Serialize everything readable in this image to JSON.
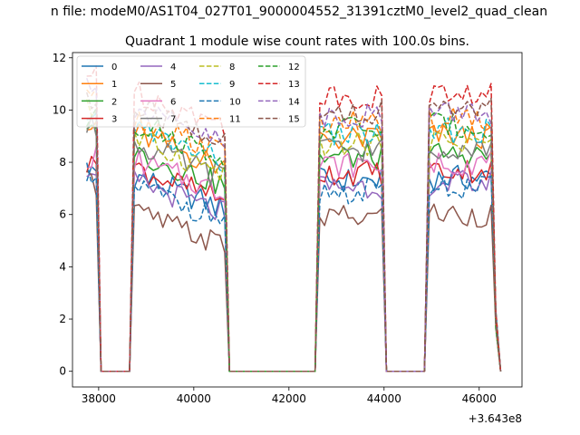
{
  "figure": {
    "suptitle": "n file: modeM0/AS1T04_027T01_9000004552_31391cztM0_level2_quad_clean",
    "title": "Quadrant 1 module wise count rates with 100.0s bins.",
    "offset_label": "+3.643e8"
  },
  "chart_data": {
    "type": "line",
    "title": "Quadrant 1 module wise count rates with 100.0s bins.",
    "xlabel": "",
    "ylabel": "",
    "x_offset": 364300000,
    "xlim": [
      37450,
      46900
    ],
    "ylim": [
      -0.6,
      12.2
    ],
    "xticks": [
      38000,
      40000,
      42000,
      44000,
      46000
    ],
    "xtick_labels": [
      "38000",
      "40000",
      "42000",
      "44000",
      "46000"
    ],
    "yticks": [
      0,
      2,
      4,
      6,
      8,
      10,
      12
    ],
    "ytick_labels": [
      "0",
      "2",
      "4",
      "6",
      "8",
      "10",
      "12"
    ],
    "grid": false,
    "legend_position": "upper-left",
    "legend_columns": 4,
    "series": [
      {
        "name": "0",
        "color": "#1f77b4",
        "dash": "solid",
        "level": 7.0
      },
      {
        "name": "1",
        "color": "#ff7f0e",
        "dash": "solid",
        "level": 8.6
      },
      {
        "name": "2",
        "color": "#2ca02c",
        "dash": "solid",
        "level": 7.9
      },
      {
        "name": "3",
        "color": "#d62728",
        "dash": "solid",
        "level": 7.3
      },
      {
        "name": "4",
        "color": "#9467bd",
        "dash": "solid",
        "level": 6.8
      },
      {
        "name": "5",
        "color": "#8c564b",
        "dash": "solid",
        "level": 5.6
      },
      {
        "name": "6",
        "color": "#e377c2",
        "dash": "solid",
        "level": 7.6
      },
      {
        "name": "7",
        "color": "#7f7f7f",
        "dash": "solid",
        "level": 8.2
      },
      {
        "name": "8",
        "color": "#bcbd22",
        "dash": "dashed",
        "level": 8.4
      },
      {
        "name": "9",
        "color": "#17becf",
        "dash": "dashed",
        "level": 8.8
      },
      {
        "name": "10",
        "color": "#1f77b4",
        "dash": "dashed",
        "level": 6.6
      },
      {
        "name": "11",
        "color": "#ff7f0e",
        "dash": "dashed",
        "level": 9.2
      },
      {
        "name": "12",
        "color": "#2ca02c",
        "dash": "dashed",
        "level": 9.0
      },
      {
        "name": "13",
        "color": "#d62728",
        "dash": "dashed",
        "level": 10.2
      },
      {
        "name": "14",
        "color": "#9467bd",
        "dash": "dashed",
        "level": 9.5
      },
      {
        "name": "15",
        "color": "#8c564b",
        "dash": "dashed",
        "level": 9.6
      }
    ],
    "active_intervals": [
      [
        37750,
        37950
      ],
      [
        38750,
        40650
      ],
      [
        42650,
        43950
      ],
      [
        44950,
        46350
      ]
    ],
    "x_start": 37750,
    "x_end": 46450,
    "bin_width": 100
  }
}
